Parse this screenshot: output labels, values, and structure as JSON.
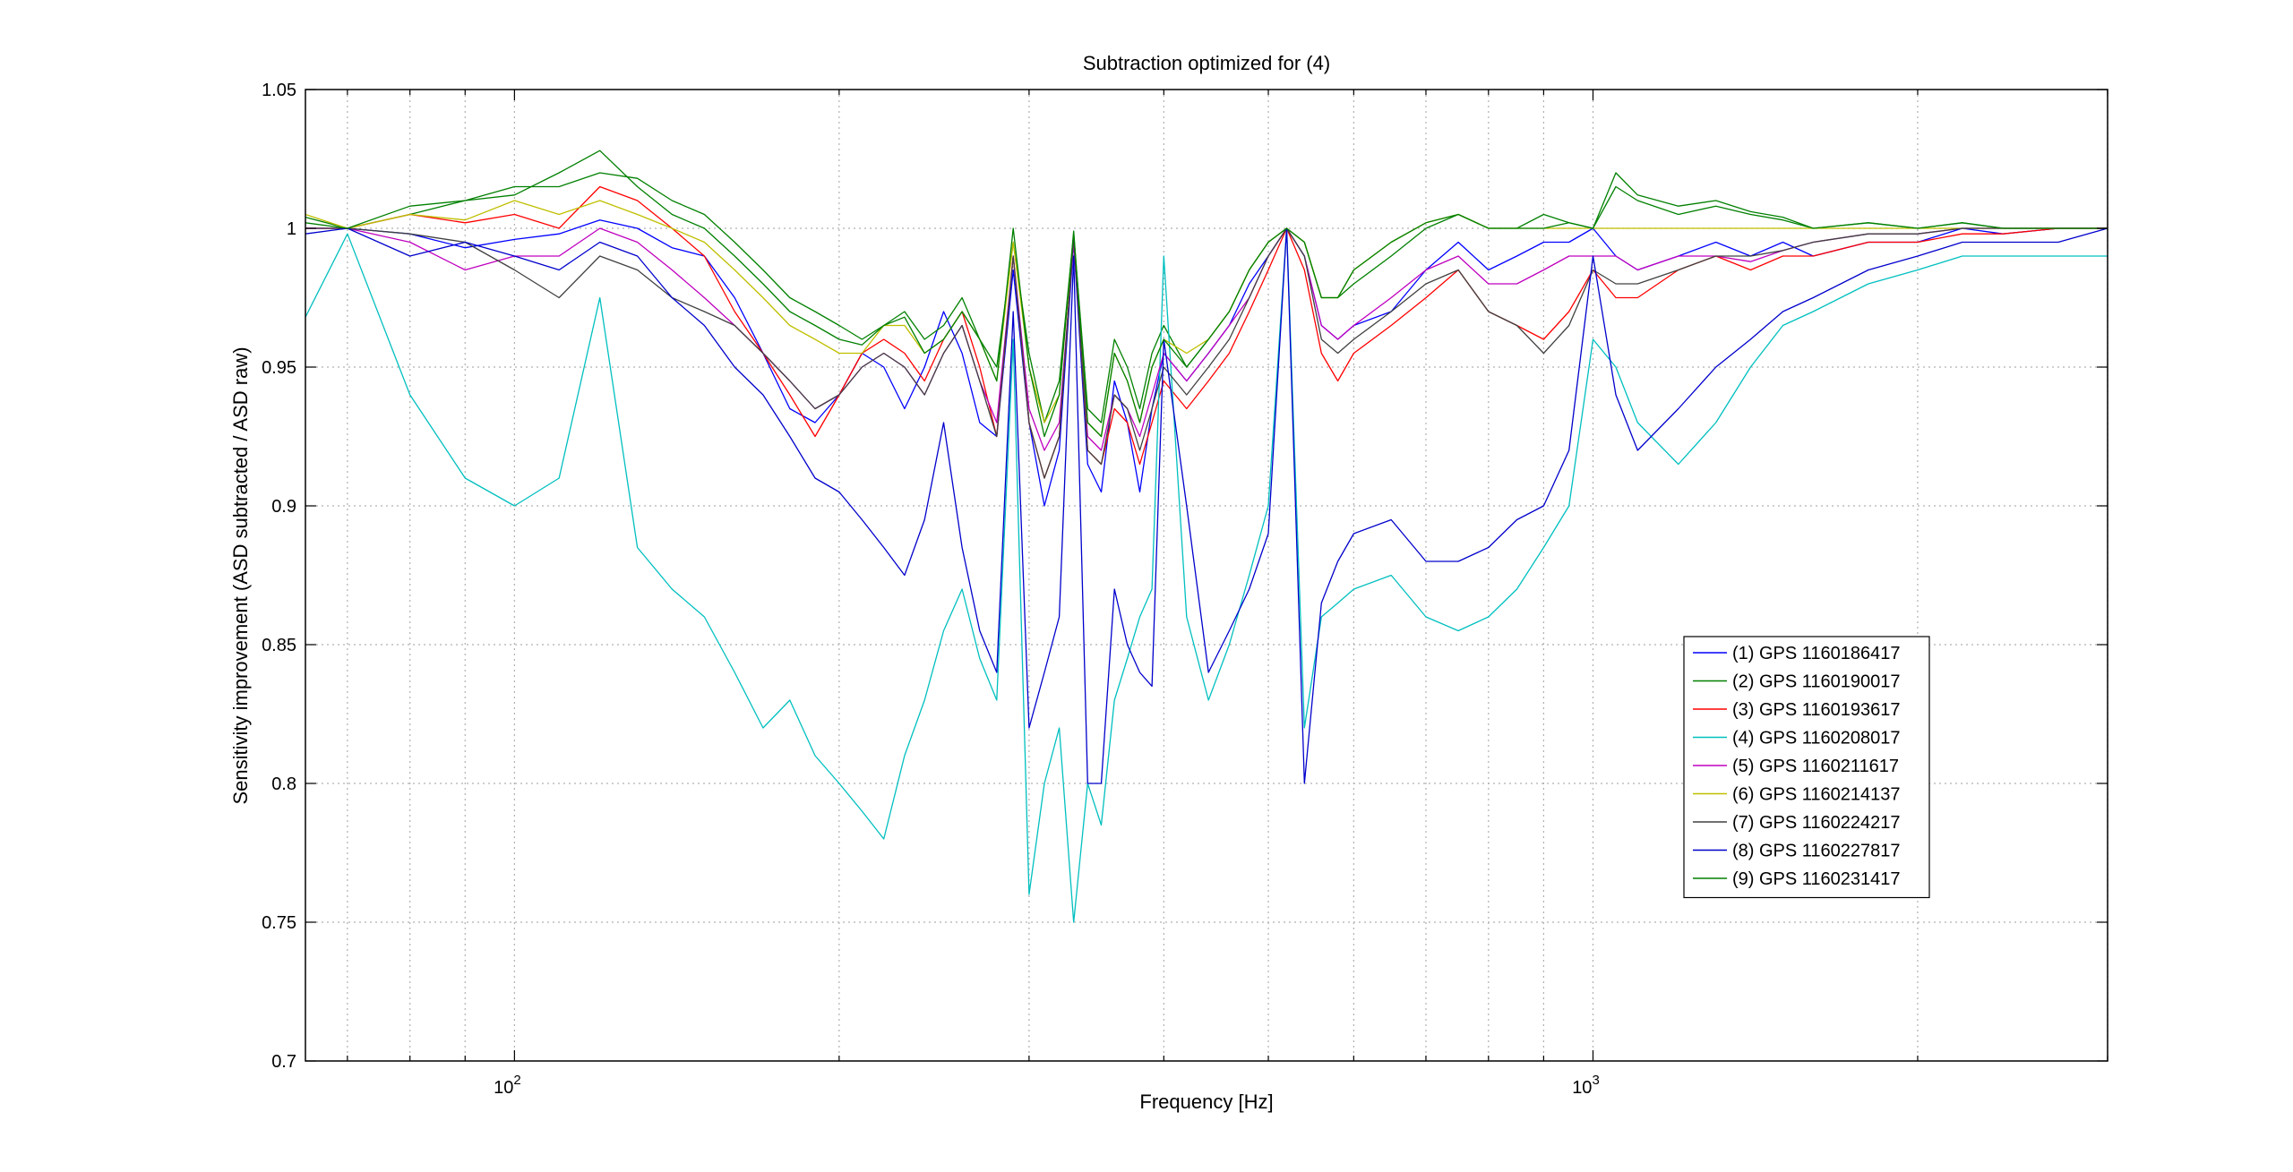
{
  "chart_data": {
    "type": "line",
    "title": "Subtraction optimized for (4)",
    "xlabel": "Frequency [Hz]",
    "ylabel": "Sensitivity improvement (ASD subtracted / ASD raw)",
    "xscale": "log",
    "xlim": [
      64,
      3000
    ],
    "ylim": [
      0.7,
      1.05
    ],
    "grid": true,
    "legend_position": "lower-right",
    "x_ticks": [
      {
        "value": 100,
        "base": "10",
        "exp": "2"
      },
      {
        "value": 1000,
        "base": "10",
        "exp": "3"
      }
    ],
    "y_ticks": [
      0.7,
      0.75,
      0.8,
      0.85,
      0.9,
      0.95,
      1.0,
      1.05
    ],
    "y_tick_labels": [
      "0.7",
      "0.75",
      "0.8",
      "0.85",
      "0.9",
      "0.95",
      "1",
      "1.05"
    ],
    "x": [
      64,
      70,
      80,
      90,
      100,
      110,
      120,
      130,
      140,
      150,
      160,
      170,
      180,
      190,
      200,
      210,
      220,
      230,
      240,
      250,
      260,
      270,
      280,
      290,
      300,
      310,
      320,
      330,
      340,
      350,
      360,
      370,
      380,
      390,
      400,
      420,
      440,
      460,
      480,
      500,
      520,
      540,
      560,
      580,
      600,
      650,
      700,
      750,
      800,
      850,
      900,
      950,
      1000,
      1050,
      1100,
      1200,
      1300,
      1400,
      1500,
      1600,
      1800,
      2000,
      2200,
      2400,
      2700,
      3000
    ],
    "series": [
      {
        "name": "(1) GPS 1160186417",
        "color": "#0000ff",
        "values": [
          1.0,
          1.0,
          0.998,
          0.993,
          0.996,
          0.998,
          1.003,
          1.0,
          0.993,
          0.99,
          0.975,
          0.955,
          0.935,
          0.93,
          0.94,
          0.955,
          0.95,
          0.935,
          0.95,
          0.97,
          0.955,
          0.93,
          0.925,
          0.985,
          0.93,
          0.9,
          0.92,
          0.995,
          0.915,
          0.905,
          0.945,
          0.93,
          0.905,
          0.935,
          0.955,
          0.945,
          0.955,
          0.965,
          0.98,
          0.99,
          1.0,
          0.99,
          0.965,
          0.96,
          0.965,
          0.97,
          0.985,
          0.995,
          0.985,
          0.99,
          0.995,
          0.995,
          1.0,
          0.99,
          0.985,
          0.99,
          0.995,
          0.99,
          0.995,
          0.99,
          0.995,
          0.995,
          1.0,
          0.998,
          1.0,
          1.0
        ]
      },
      {
        "name": "(2) GPS 1160190017",
        "color": "#008000",
        "values": [
          1.004,
          1.0,
          1.005,
          1.01,
          1.015,
          1.015,
          1.02,
          1.018,
          1.01,
          1.005,
          0.995,
          0.985,
          0.975,
          0.97,
          0.965,
          0.96,
          0.965,
          0.97,
          0.96,
          0.965,
          0.975,
          0.96,
          0.95,
          0.995,
          0.955,
          0.93,
          0.945,
          0.998,
          0.935,
          0.93,
          0.96,
          0.95,
          0.935,
          0.955,
          0.965,
          0.95,
          0.96,
          0.97,
          0.985,
          0.995,
          1.0,
          0.995,
          0.975,
          0.975,
          0.98,
          0.99,
          1.0,
          1.005,
          1.0,
          1.0,
          1.005,
          1.002,
          1.0,
          1.015,
          1.01,
          1.005,
          1.008,
          1.005,
          1.003,
          1.0,
          1.002,
          1.0,
          1.002,
          1.0,
          1.0,
          1.0
        ]
      },
      {
        "name": "(3) GPS 1160193617",
        "color": "#ff0000",
        "values": [
          1.0,
          1.0,
          1.005,
          1.002,
          1.005,
          1.0,
          1.015,
          1.01,
          1.0,
          0.99,
          0.97,
          0.955,
          0.94,
          0.925,
          0.94,
          0.955,
          0.96,
          0.955,
          0.945,
          0.96,
          0.97,
          0.95,
          0.925,
          0.99,
          0.93,
          0.91,
          0.925,
          0.997,
          0.92,
          0.915,
          0.935,
          0.93,
          0.915,
          0.93,
          0.945,
          0.935,
          0.945,
          0.955,
          0.97,
          0.985,
          1.0,
          0.985,
          0.955,
          0.945,
          0.955,
          0.965,
          0.975,
          0.985,
          0.97,
          0.965,
          0.96,
          0.97,
          0.985,
          0.975,
          0.975,
          0.985,
          0.99,
          0.985,
          0.99,
          0.99,
          0.995,
          0.995,
          0.998,
          0.998,
          1.0,
          1.0
        ]
      },
      {
        "name": "(4) GPS 1160208017",
        "color": "#00bfbf",
        "values": [
          0.968,
          0.998,
          0.94,
          0.91,
          0.9,
          0.91,
          0.975,
          0.885,
          0.87,
          0.86,
          0.84,
          0.82,
          0.83,
          0.81,
          0.8,
          0.79,
          0.78,
          0.81,
          0.83,
          0.855,
          0.87,
          0.845,
          0.83,
          0.96,
          0.76,
          0.8,
          0.82,
          0.75,
          0.8,
          0.785,
          0.83,
          0.845,
          0.86,
          0.87,
          0.99,
          0.86,
          0.83,
          0.85,
          0.875,
          0.9,
          1.0,
          0.82,
          0.86,
          0.865,
          0.87,
          0.875,
          0.86,
          0.855,
          0.86,
          0.87,
          0.885,
          0.9,
          0.96,
          0.95,
          0.93,
          0.915,
          0.93,
          0.95,
          0.965,
          0.97,
          0.98,
          0.985,
          0.99,
          0.99,
          0.99,
          0.99
        ]
      },
      {
        "name": "(5) GPS 1160211617",
        "color": "#bf00bf",
        "values": [
          1.0,
          1.0,
          0.995,
          0.985,
          0.99,
          0.99,
          1.0,
          0.995,
          0.985,
          0.975,
          0.965,
          0.955,
          0.945,
          0.935,
          0.94,
          0.95,
          0.955,
          0.95,
          0.94,
          0.955,
          0.965,
          0.945,
          0.93,
          0.99,
          0.935,
          0.92,
          0.93,
          0.995,
          0.925,
          0.92,
          0.94,
          0.935,
          0.925,
          0.94,
          0.955,
          0.945,
          0.955,
          0.965,
          0.975,
          0.99,
          1.0,
          0.99,
          0.965,
          0.96,
          0.965,
          0.975,
          0.985,
          0.99,
          0.98,
          0.98,
          0.985,
          0.99,
          0.99,
          0.99,
          0.985,
          0.99,
          0.99,
          0.988,
          0.992,
          0.995,
          0.998,
          0.998,
          1.0,
          1.0,
          1.0,
          1.0
        ]
      },
      {
        "name": "(6) GPS 1160214137",
        "color": "#bfbf00",
        "values": [
          1.005,
          1.0,
          1.005,
          1.003,
          1.01,
          1.005,
          1.01,
          1.005,
          1.0,
          0.995,
          0.985,
          0.975,
          0.965,
          0.96,
          0.955,
          0.955,
          0.965,
          0.965,
          0.955,
          0.96,
          0.97,
          0.96,
          0.945,
          0.995,
          0.95,
          0.93,
          0.94,
          0.998,
          0.93,
          0.925,
          0.955,
          0.945,
          0.93,
          0.95,
          0.96,
          0.955,
          0.96,
          0.97,
          0.985,
          0.995,
          1.0,
          0.995,
          0.975,
          0.975,
          0.985,
          0.995,
          1.002,
          1.005,
          1.0,
          1.0,
          1.0,
          1.0,
          1.0,
          1.0,
          1.0,
          1.0,
          1.0,
          1.0,
          1.0,
          1.0,
          1.0,
          1.0,
          1.0,
          1.0,
          1.0,
          1.0
        ]
      },
      {
        "name": "(7) GPS 1160224217",
        "color": "#404040",
        "values": [
          1.0,
          1.0,
          0.998,
          0.995,
          0.985,
          0.975,
          0.99,
          0.985,
          0.975,
          0.97,
          0.965,
          0.955,
          0.945,
          0.935,
          0.94,
          0.95,
          0.955,
          0.95,
          0.94,
          0.955,
          0.965,
          0.945,
          0.925,
          0.99,
          0.93,
          0.91,
          0.925,
          0.997,
          0.92,
          0.915,
          0.94,
          0.935,
          0.92,
          0.935,
          0.95,
          0.94,
          0.95,
          0.96,
          0.975,
          0.99,
          1.0,
          0.99,
          0.96,
          0.955,
          0.96,
          0.97,
          0.98,
          0.985,
          0.97,
          0.965,
          0.955,
          0.965,
          0.985,
          0.98,
          0.98,
          0.985,
          0.99,
          0.99,
          0.992,
          0.995,
          0.998,
          0.998,
          1.0,
          1.0,
          1.0,
          1.0
        ]
      },
      {
        "name": "(8) GPS 1160227817",
        "color": "#0000cc",
        "values": [
          0.998,
          1.0,
          0.99,
          0.995,
          0.99,
          0.985,
          0.995,
          0.99,
          0.975,
          0.965,
          0.95,
          0.94,
          0.925,
          0.91,
          0.905,
          0.895,
          0.885,
          0.875,
          0.895,
          0.93,
          0.885,
          0.855,
          0.84,
          0.97,
          0.82,
          0.84,
          0.86,
          0.99,
          0.8,
          0.8,
          0.87,
          0.85,
          0.84,
          0.835,
          0.96,
          0.9,
          0.84,
          0.855,
          0.87,
          0.89,
          1.0,
          0.8,
          0.865,
          0.88,
          0.89,
          0.895,
          0.88,
          0.88,
          0.885,
          0.895,
          0.9,
          0.92,
          0.99,
          0.94,
          0.92,
          0.935,
          0.95,
          0.96,
          0.97,
          0.975,
          0.985,
          0.99,
          0.995,
          0.995,
          0.995,
          1.0
        ]
      },
      {
        "name": "(9) GPS 1160231417",
        "color": "#008000",
        "values": [
          1.002,
          1.0,
          1.008,
          1.01,
          1.012,
          1.02,
          1.028,
          1.015,
          1.005,
          1.0,
          0.99,
          0.98,
          0.97,
          0.965,
          0.96,
          0.958,
          0.965,
          0.968,
          0.955,
          0.96,
          0.97,
          0.96,
          0.945,
          1.0,
          0.95,
          0.925,
          0.94,
          0.999,
          0.93,
          0.925,
          0.955,
          0.945,
          0.93,
          0.95,
          0.96,
          0.95,
          0.96,
          0.97,
          0.985,
          0.995,
          1.0,
          0.995,
          0.975,
          0.975,
          0.985,
          0.995,
          1.002,
          1.005,
          1.0,
          1.0,
          1.0,
          1.002,
          1.0,
          1.02,
          1.012,
          1.008,
          1.01,
          1.006,
          1.004,
          1.0,
          1.002,
          1.0,
          1.002,
          1.0,
          1.0,
          1.0
        ]
      }
    ]
  }
}
